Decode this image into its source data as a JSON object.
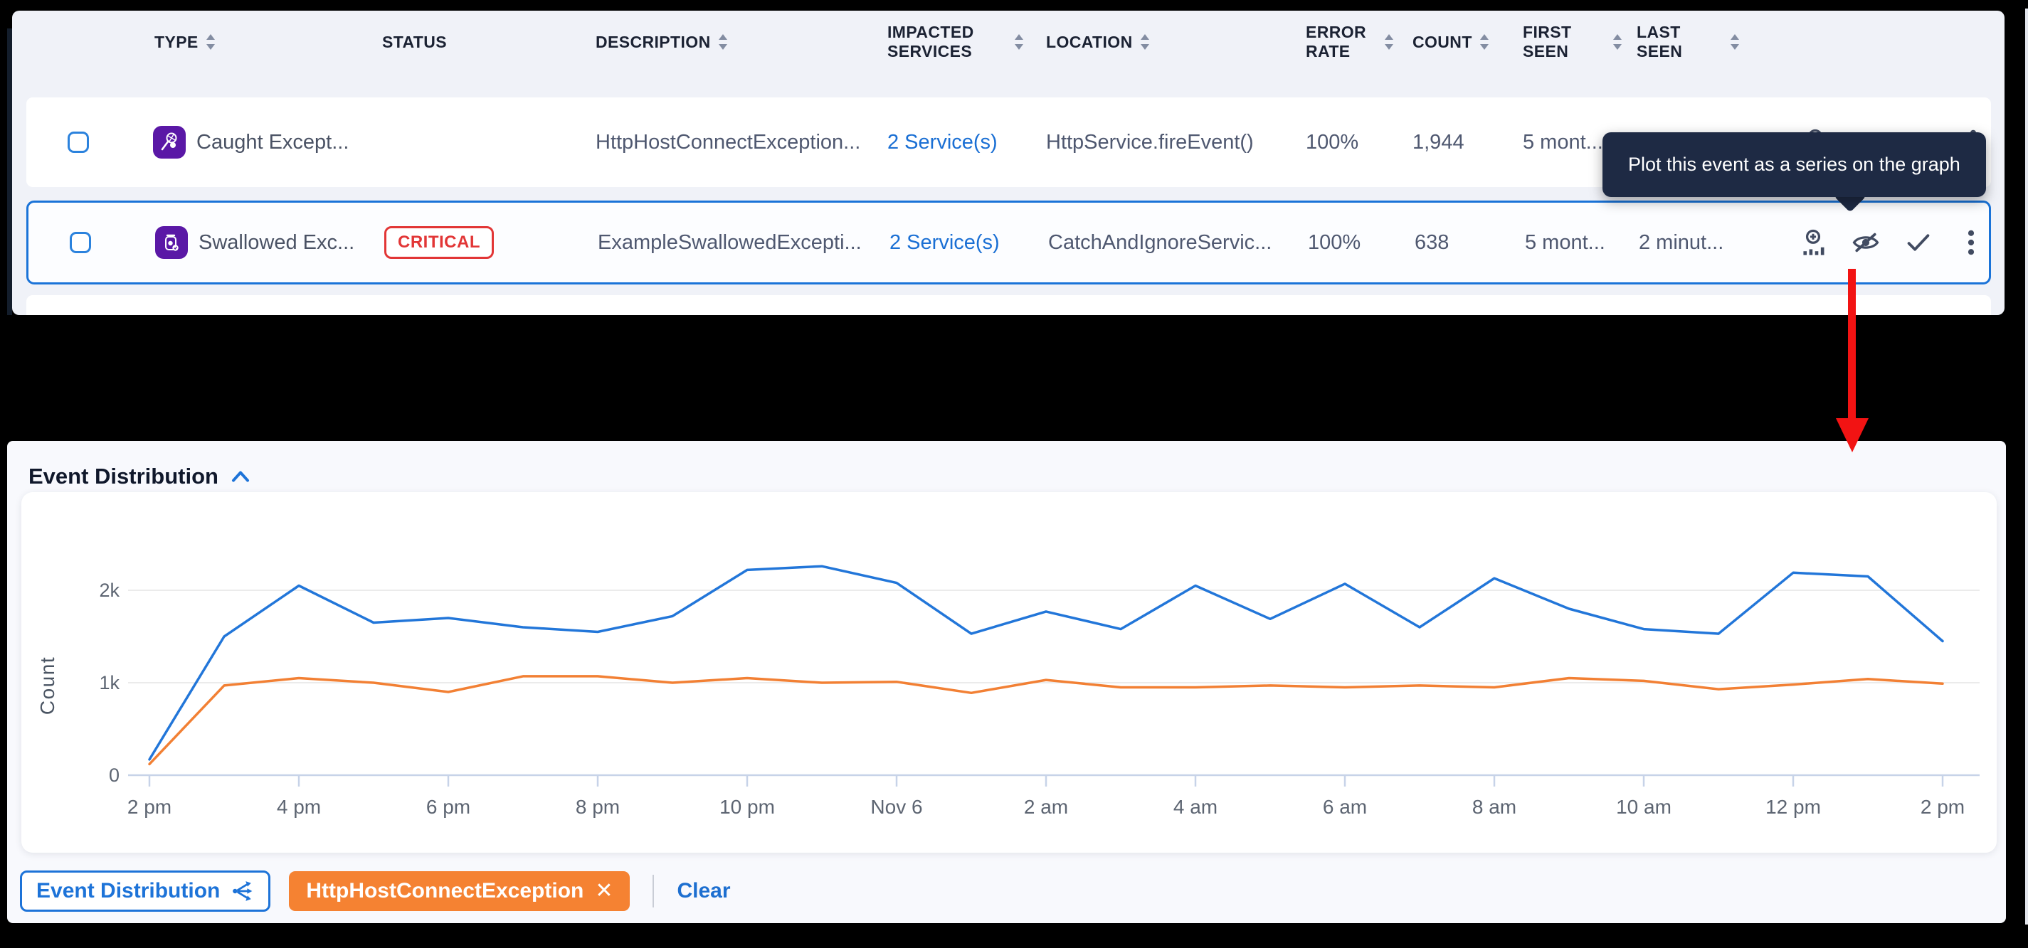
{
  "colors": {
    "page_bg": "#000000",
    "panel_bg": "#f0f2f8",
    "accent_blue": "#1d73d8",
    "selected_row_border": "#1a73d8",
    "critical_red": "#e23636",
    "tooltip_bg": "#1e2a44",
    "arrow_red": "#f21313",
    "series_blue": "#2276d9",
    "series_orange": "#f28034"
  },
  "table": {
    "columns": [
      {
        "label": "TYPE",
        "sortable": true
      },
      {
        "label": "STATUS",
        "sortable": false
      },
      {
        "label": "DESCRIPTION",
        "sortable": true
      },
      {
        "label": "IMPACTED SERVICES",
        "sortable": true
      },
      {
        "label": "LOCATION",
        "sortable": true
      },
      {
        "label": "ERROR RATE",
        "sortable": true
      },
      {
        "label": "COUNT",
        "sortable": true
      },
      {
        "label": "FIRST SEEN",
        "sortable": true
      },
      {
        "label": "LAST SEEN",
        "sortable": true
      }
    ],
    "rows": [
      {
        "type_label": "Caught Except...",
        "type_icon": "caught-exception-icon",
        "status": "",
        "description": "HttpHostConnectException...",
        "services": "2 Service(s)",
        "location": "HttpService.fireEvent()",
        "error_rate": "100%",
        "count": "1,944",
        "first_seen": "5 mont...",
        "last_seen": "",
        "selected": false
      },
      {
        "type_label": "Swallowed Exc...",
        "type_icon": "swallowed-exception-icon",
        "status": "CRITICAL",
        "description": "ExampleSwallowedExcepti...",
        "services": "2 Service(s)",
        "location": "CatchAndIgnoreServic...",
        "error_rate": "100%",
        "count": "638",
        "first_seen": "5 mont...",
        "last_seen": "2 minut...",
        "selected": true
      }
    ],
    "row_action_icons": [
      "plot-on-graph-icon",
      "hide-eye-off-icon",
      "resolve-check-icon",
      "more-kebab-icon"
    ]
  },
  "tooltip": {
    "text": "Plot this event as a series on the graph"
  },
  "section": {
    "title": "Event Distribution",
    "collapse_icon": "chevron-up-icon"
  },
  "chart_data": {
    "type": "line",
    "title": "Event Distribution",
    "xlabel": "",
    "ylabel": "Count",
    "grid": "horizontal",
    "legend_position": "bottom",
    "ylim": [
      0,
      2400
    ],
    "y_ticks": [
      "0",
      "1k",
      "2k"
    ],
    "y_tick_values": [
      0,
      1000,
      2000
    ],
    "x_hours": [
      "2 pm",
      "3 pm",
      "4 pm",
      "5 pm",
      "6 pm",
      "7 pm",
      "8 pm",
      "9 pm",
      "10 pm",
      "11 pm",
      "Nov 6",
      "1 am",
      "2 am",
      "3 am",
      "4 am",
      "5 am",
      "6 am",
      "7 am",
      "8 am",
      "9 am",
      "10 am",
      "11 am",
      "12 pm",
      "1 pm",
      "2 pm"
    ],
    "x_tick_labels": [
      "2 pm",
      "4 pm",
      "6 pm",
      "8 pm",
      "10 pm",
      "Nov 6",
      "2 am",
      "4 am",
      "6 am",
      "8 am",
      "10 am",
      "12 pm",
      "2 pm"
    ],
    "series": [
      {
        "name": "Event Distribution",
        "color": "#2276d9",
        "values": [
          170,
          1500,
          2050,
          1650,
          1700,
          1600,
          1550,
          1720,
          2220,
          2260,
          2080,
          1530,
          1770,
          1580,
          2050,
          1690,
          2070,
          1600,
          2130,
          1800,
          1580,
          1530,
          2190,
          2150,
          1450
        ]
      },
      {
        "name": "HttpHostConnectException",
        "color": "#f28034",
        "values": [
          120,
          970,
          1050,
          1000,
          900,
          1070,
          1070,
          1000,
          1050,
          1000,
          1010,
          890,
          1030,
          950,
          950,
          970,
          950,
          970,
          950,
          1050,
          1020,
          930,
          980,
          1040,
          990
        ]
      }
    ]
  },
  "legend": {
    "base_chip": {
      "label": "Event Distribution",
      "icon": "fan-out-series-icon"
    },
    "series_chip": {
      "label": "HttpHostConnectException",
      "close_icon": "close-icon",
      "color": "#f58232"
    },
    "clear_label": "Clear"
  }
}
